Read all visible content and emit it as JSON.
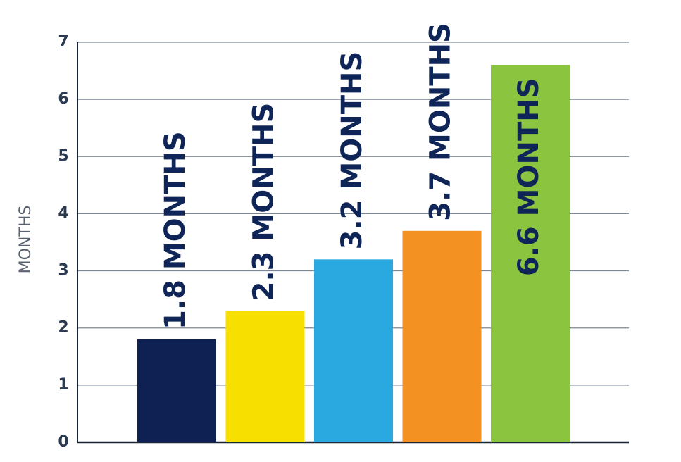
{
  "chart_data": {
    "type": "bar",
    "y_label": "MONTHS",
    "categories": [
      null,
      null,
      null,
      null,
      null
    ],
    "series": [
      {
        "values": [
          1.8,
          2.3,
          3.2,
          3.7,
          6.6
        ],
        "value_labels": [
          "1.8 MONTHS",
          "2.3 MONTHS",
          "3.2 MONTHS",
          "3.7 MONTHS",
          "6.6 MONTHS"
        ],
        "colors": [
          "#0f2152",
          "#f7e000",
          "#2aa9e0",
          "#f39122",
          "#8bc43f"
        ]
      }
    ],
    "ylim": [
      0,
      7
    ],
    "yticks": [
      0,
      1,
      2,
      3,
      4,
      5,
      6,
      7
    ],
    "grid": true
  }
}
